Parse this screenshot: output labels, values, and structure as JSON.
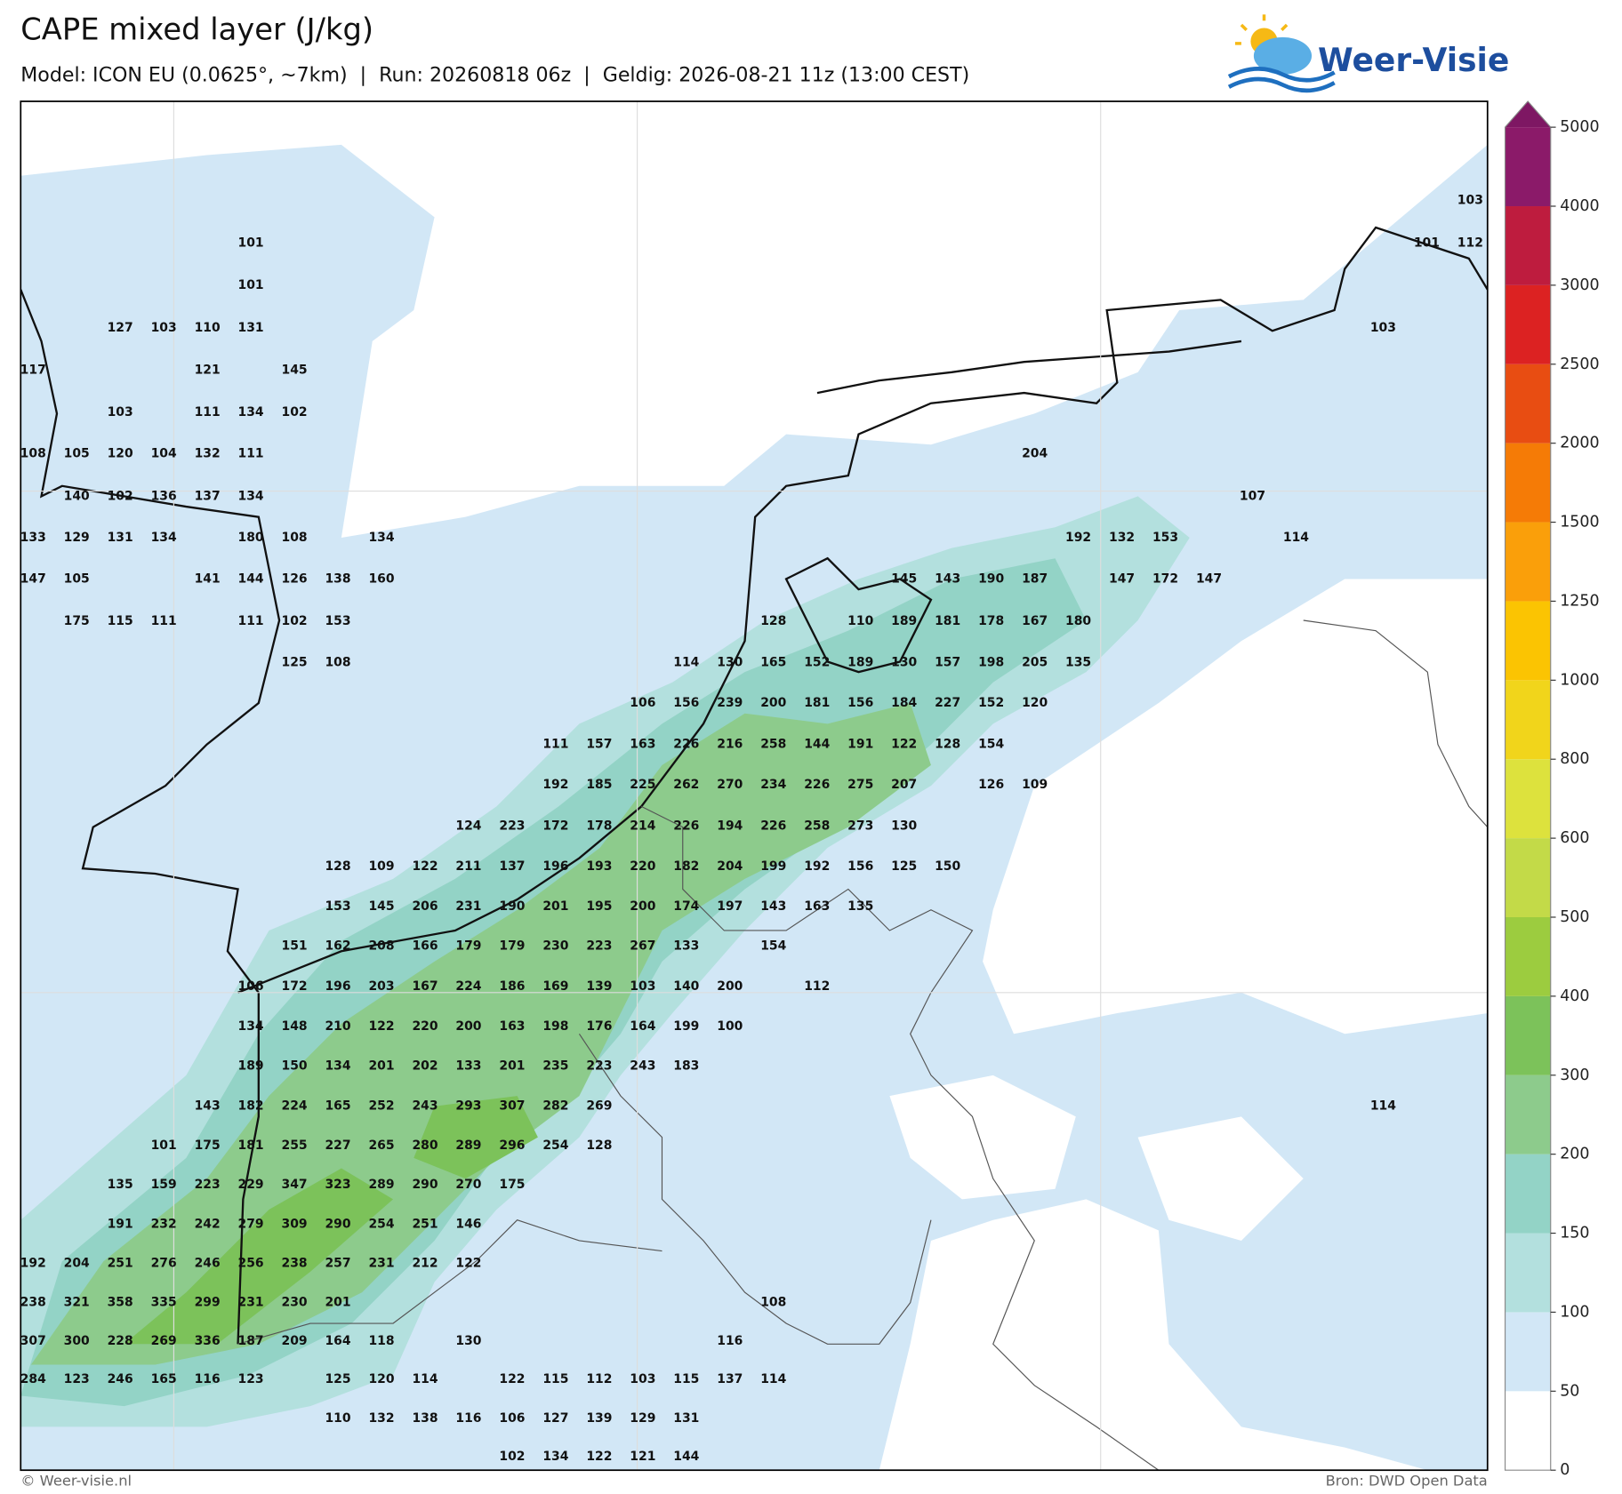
{
  "header": {
    "title": "CAPE mixed layer (J/kg)",
    "subtitle": "Model: ICON EU (0.0625°, ~7km)  |  Run: 20260818 06z  |  Geldig: 2026-08-21 11z (13:00 CEST)"
  },
  "logo": "Weer-Visie",
  "map": {
    "grid_values": [
      [
        null,
        null,
        null,
        null,
        null,
        null,
        null,
        null,
        null,
        null,
        null,
        null,
        null,
        null,
        null,
        null,
        null,
        null,
        null,
        null,
        null,
        null,
        null,
        null,
        null,
        null,
        null,
        null,
        null,
        null,
        null,
        null,
        null,
        103
      ],
      [
        null,
        null,
        null,
        null,
        null,
        101,
        null,
        null,
        null,
        null,
        null,
        null,
        null,
        null,
        null,
        null,
        null,
        null,
        null,
        null,
        null,
        null,
        null,
        null,
        null,
        null,
        null,
        null,
        null,
        null,
        null,
        null,
        101,
        112
      ],
      [
        null,
        null,
        null,
        null,
        null,
        101
      ],
      [
        null,
        null,
        127,
        103,
        110,
        131,
        null,
        null,
        null,
        null,
        null,
        null,
        null,
        null,
        null,
        null,
        null,
        null,
        null,
        null,
        null,
        null,
        null,
        null,
        null,
        null,
        null,
        null,
        null,
        null,
        null,
        103
      ],
      [
        117,
        null,
        null,
        null,
        121,
        null,
        145
      ],
      [
        null,
        null,
        103,
        null,
        111,
        134,
        102
      ],
      [
        108,
        105,
        120,
        104,
        132,
        111,
        null,
        null,
        null,
        null,
        null,
        null,
        null,
        null,
        null,
        null,
        null,
        null,
        null,
        null,
        null,
        null,
        null,
        204
      ],
      [
        null,
        140,
        102,
        136,
        137,
        134,
        null,
        null,
        null,
        null,
        null,
        null,
        null,
        null,
        null,
        null,
        null,
        null,
        null,
        null,
        null,
        null,
        null,
        null,
        null,
        null,
        null,
        null,
        107
      ],
      [
        133,
        129,
        131,
        134,
        null,
        180,
        108,
        null,
        134,
        null,
        null,
        null,
        null,
        null,
        null,
        null,
        null,
        null,
        null,
        null,
        null,
        null,
        null,
        null,
        192,
        132,
        153,
        null,
        null,
        114
      ],
      [
        147,
        105,
        null,
        null,
        141,
        144,
        126,
        138,
        160,
        null,
        null,
        null,
        null,
        null,
        null,
        null,
        null,
        null,
        null,
        null,
        145,
        143,
        190,
        187,
        null,
        147,
        172,
        147
      ],
      [
        null,
        175,
        115,
        111,
        null,
        111,
        102,
        153,
        null,
        null,
        null,
        null,
        null,
        null,
        null,
        null,
        null,
        128,
        null,
        110,
        189,
        181,
        178,
        167,
        180
      ],
      [
        null,
        null,
        null,
        null,
        null,
        null,
        125,
        108,
        null,
        null,
        null,
        null,
        null,
        null,
        null,
        114,
        130,
        165,
        152,
        189,
        130,
        157,
        198,
        205,
        135
      ],
      [
        null,
        null,
        null,
        null,
        null,
        null,
        null,
        null,
        null,
        null,
        null,
        null,
        null,
        null,
        106,
        156,
        239,
        200,
        181,
        156,
        184,
        227,
        152,
        120
      ],
      [
        null,
        null,
        null,
        null,
        null,
        null,
        null,
        null,
        null,
        null,
        null,
        null,
        111,
        157,
        163,
        226,
        216,
        258,
        144,
        191,
        122,
        128,
        154
      ],
      [
        null,
        null,
        null,
        null,
        null,
        null,
        null,
        null,
        null,
        null,
        null,
        null,
        192,
        185,
        225,
        262,
        270,
        234,
        226,
        275,
        207,
        null,
        126,
        109
      ],
      [
        null,
        null,
        null,
        null,
        null,
        null,
        null,
        null,
        null,
        null,
        124,
        223,
        172,
        178,
        214,
        226,
        194,
        226,
        258,
        273,
        130
      ],
      [
        null,
        null,
        null,
        null,
        null,
        null,
        null,
        128,
        109,
        122,
        211,
        137,
        196,
        193,
        220,
        182,
        204,
        199,
        192,
        156,
        125,
        150
      ],
      [
        null,
        null,
        null,
        null,
        null,
        null,
        null,
        153,
        145,
        206,
        231,
        190,
        201,
        195,
        200,
        174,
        197,
        143,
        163,
        135
      ],
      [
        null,
        null,
        null,
        null,
        null,
        null,
        151,
        162,
        208,
        166,
        179,
        179,
        230,
        223,
        267,
        133,
        null,
        154
      ],
      [
        null,
        null,
        null,
        null,
        null,
        106,
        172,
        196,
        203,
        167,
        224,
        186,
        169,
        139,
        103,
        140,
        200,
        null,
        112
      ],
      [
        null,
        null,
        null,
        null,
        null,
        134,
        148,
        210,
        122,
        220,
        200,
        163,
        198,
        176,
        164,
        199,
        100
      ],
      [
        null,
        null,
        null,
        null,
        null,
        189,
        150,
        134,
        201,
        202,
        133,
        201,
        235,
        223,
        243,
        183
      ],
      [
        null,
        null,
        null,
        null,
        143,
        182,
        224,
        165,
        252,
        243,
        293,
        307,
        282,
        269,
        null,
        null,
        null,
        null,
        null,
        null,
        null,
        null,
        null,
        null,
        null,
        null,
        null,
        null,
        null,
        null,
        null,
        114
      ],
      [
        null,
        null,
        null,
        101,
        175,
        181,
        255,
        227,
        265,
        280,
        289,
        296,
        254,
        128
      ],
      [
        null,
        null,
        135,
        159,
        223,
        229,
        347,
        323,
        289,
        290,
        270,
        175
      ],
      [
        null,
        null,
        191,
        232,
        242,
        279,
        309,
        290,
        254,
        251,
        146
      ],
      [
        192,
        204,
        251,
        276,
        246,
        256,
        238,
        257,
        231,
        212,
        122
      ],
      [
        238,
        321,
        358,
        335,
        299,
        231,
        230,
        201,
        null,
        null,
        null,
        null,
        null,
        null,
        null,
        null,
        null,
        108
      ],
      [
        307,
        300,
        228,
        269,
        336,
        187,
        209,
        164,
        118,
        null,
        130,
        null,
        null,
        null,
        null,
        null,
        116
      ],
      [
        284,
        123,
        246,
        165,
        116,
        123,
        null,
        125,
        120,
        114,
        null,
        122,
        115,
        112,
        103,
        115,
        137,
        114
      ],
      [
        null,
        null,
        null,
        null,
        null,
        null,
        null,
        110,
        132,
        138,
        116,
        106,
        127,
        139,
        129,
        131
      ],
      [
        null,
        null,
        null,
        null,
        null,
        null,
        null,
        null,
        null,
        null,
        null,
        102,
        134,
        122,
        121,
        144
      ]
    ]
  },
  "colorbar": {
    "ticks": [
      0,
      50,
      100,
      150,
      200,
      300,
      400,
      500,
      600,
      800,
      1000,
      1250,
      1500,
      2000,
      2500,
      3000,
      4000,
      5000
    ],
    "colors": [
      "#ffffff",
      "#d2e7f6",
      "#b3e0de",
      "#93d3c6",
      "#8dcb8c",
      "#7cc25a",
      "#9ccc3f",
      "#c3da48",
      "#dde23d",
      "#f1d51b",
      "#fbc402",
      "#fa9f0a",
      "#f57b06",
      "#e84d12",
      "#dc2222",
      "#be1c3e",
      "#8b1a69"
    ],
    "extend_color": "#7e1763"
  },
  "footer": {
    "copyright": "© Weer-visie.nl",
    "source": "Bron: DWD Open Data"
  }
}
